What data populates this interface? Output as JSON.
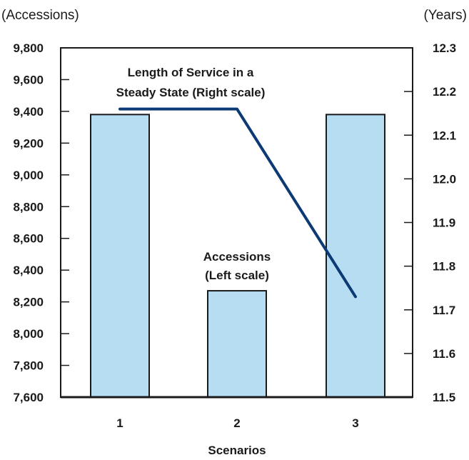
{
  "chart_data": {
    "type": "bar",
    "xlabel": "Scenarios",
    "categories": [
      "1",
      "2",
      "3"
    ],
    "left_axis": {
      "unit_label": "(Accessions)",
      "ylim": [
        7600,
        9800
      ],
      "ticks": [
        "7,600",
        "7,800",
        "8,000",
        "8,200",
        "8,400",
        "8,600",
        "8,800",
        "9,000",
        "9,200",
        "9,400",
        "9,600",
        "9,800"
      ],
      "tick_values": [
        7600,
        7800,
        8000,
        8200,
        8400,
        8600,
        8800,
        9000,
        9200,
        9400,
        9600,
        9800
      ]
    },
    "right_axis": {
      "unit_label": "(Years)",
      "ylim": [
        11.5,
        12.3
      ],
      "ticks": [
        "11.5",
        "11.6",
        "11.7",
        "11.8",
        "11.9",
        "12.0",
        "12.1",
        "12.2",
        "12.3"
      ],
      "tick_values": [
        11.5,
        11.6,
        11.7,
        11.8,
        11.9,
        12.0,
        12.1,
        12.2,
        12.3
      ]
    },
    "series": [
      {
        "type": "bar",
        "axis": "left",
        "values": [
          9380,
          8270,
          9380
        ],
        "color": "#b7ddf3",
        "annotation": [
          "Accessions",
          "(Left scale)"
        ]
      },
      {
        "type": "line",
        "axis": "right",
        "values": [
          12.16,
          12.16,
          11.73
        ],
        "color": "#0b3a75",
        "annotation": [
          "Length of Service in a",
          "Steady State (Right scale)"
        ]
      }
    ],
    "grid": false,
    "legend": "none"
  }
}
